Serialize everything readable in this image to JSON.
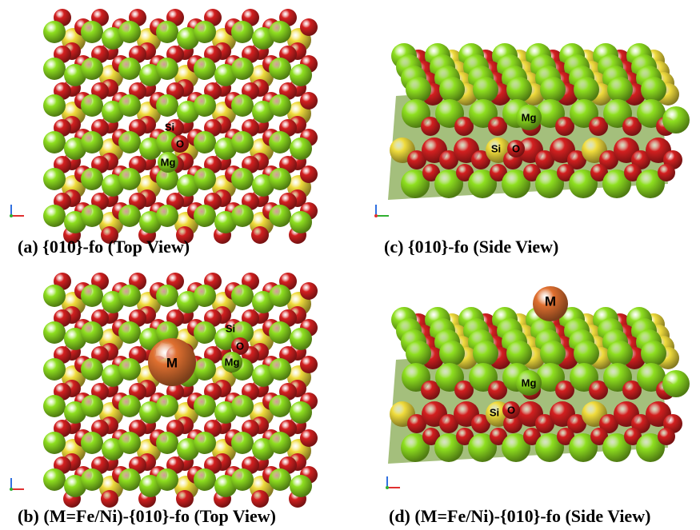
{
  "panels": [
    {
      "id": "a",
      "caption": "(a) {010}-fo (Top View)",
      "view": "top",
      "labels": {
        "si": "Si",
        "o": "O",
        "mg": "Mg"
      },
      "has_substituent": false
    },
    {
      "id": "b",
      "caption": "(b) (M=Fe/Ni)-{010}-fo (Top View)",
      "view": "top",
      "labels": {
        "si": "Si",
        "o": "O",
        "mg": "Mg",
        "m": "M"
      },
      "has_substituent": true
    },
    {
      "id": "c",
      "caption": "(c) {010}-fo (Side View)",
      "view": "side",
      "labels": {
        "si": "Si",
        "o": "O",
        "mg": "Mg"
      },
      "has_substituent": false
    },
    {
      "id": "d",
      "caption": "(d) (M=Fe/Ni)-{010}-fo (Side View)",
      "view": "side",
      "labels": {
        "si": "Si",
        "o": "O",
        "mg": "Mg",
        "m": "M"
      },
      "has_substituent": true
    }
  ],
  "atom_colors": {
    "Mg": "#8fe020",
    "O": "#d42020",
    "Si": "#f0dc3c",
    "M": "#e07030"
  },
  "axis_icon": {
    "colors": [
      "#3070e0",
      "#30b030",
      "#e03030"
    ]
  }
}
